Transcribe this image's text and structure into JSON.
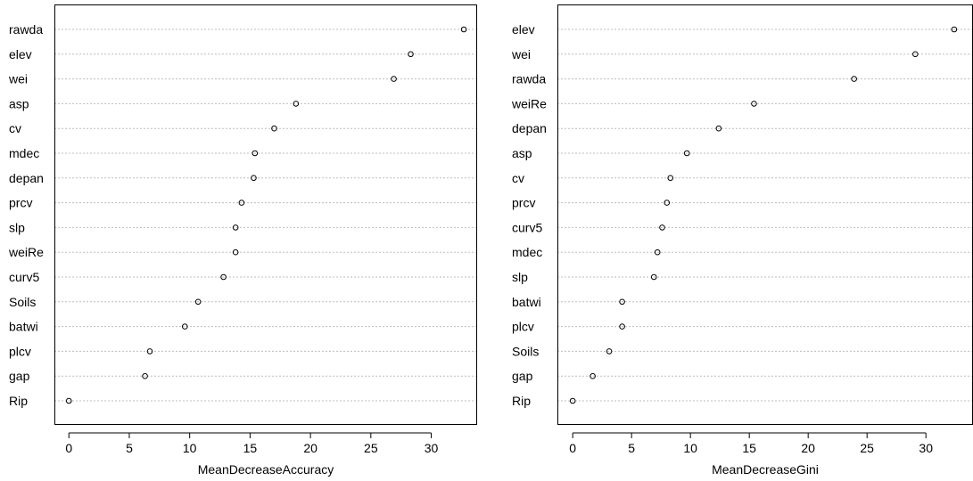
{
  "chart_data": [
    {
      "type": "scatter",
      "style": "dotchart",
      "xlabel": "MeanDecreaseAccuracy",
      "ylabel": "",
      "xlim": [
        -1.2,
        33.8
      ],
      "xticks": [
        0,
        5,
        10,
        15,
        20,
        25,
        30
      ],
      "grid": "horizontal-dotted",
      "categories": [
        "rawda",
        "elev",
        "wei",
        "asp",
        "cv",
        "mdec",
        "depan",
        "prcv",
        "slp",
        "weiRe",
        "curv5",
        "Soils",
        "batwi",
        "plcv",
        "gap",
        "Rip"
      ],
      "values": [
        32.7,
        28.3,
        26.9,
        18.8,
        17.0,
        15.4,
        15.3,
        14.3,
        13.8,
        13.8,
        12.8,
        10.7,
        9.6,
        6.7,
        6.3,
        0.0
      ]
    },
    {
      "type": "scatter",
      "style": "dotchart",
      "xlabel": "MeanDecreaseGini",
      "ylabel": "",
      "xlim": [
        -1.3,
        34.0
      ],
      "xticks": [
        0,
        5,
        10,
        15,
        20,
        25,
        30
      ],
      "grid": "horizontal-dotted",
      "categories": [
        "elev",
        "wei",
        "rawda",
        "weiRe",
        "depan",
        "asp",
        "cv",
        "prcv",
        "curv5",
        "mdec",
        "slp",
        "batwi",
        "plcv",
        "Soils",
        "gap",
        "Rip"
      ],
      "values": [
        32.4,
        29.1,
        23.9,
        15.4,
        12.4,
        9.7,
        8.3,
        8.0,
        7.6,
        7.2,
        6.9,
        4.2,
        4.2,
        3.1,
        1.7,
        0.0
      ]
    }
  ],
  "colors": {
    "points": "#000000",
    "grid": "#bdbdbd",
    "frame": "#000000"
  }
}
